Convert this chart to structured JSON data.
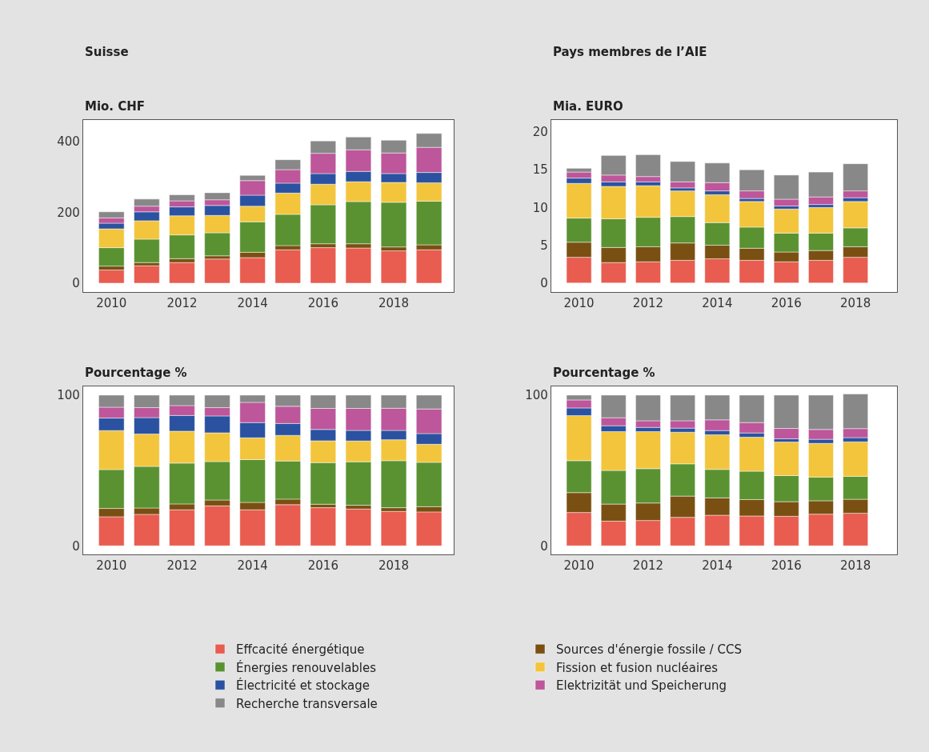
{
  "chart_data": [
    {
      "type": "bar",
      "stacked": true,
      "title": "Suisse",
      "ylabel": "Mio. CHF",
      "legend": "bottom",
      "x": [
        2010,
        2011,
        2012,
        2013,
        2014,
        2015,
        2016,
        2017,
        2018,
        2019
      ],
      "xlim": [
        2009.2,
        2019.7
      ],
      "xticks": [
        2010,
        2012,
        2014,
        2016,
        2018
      ],
      "ylim": [
        -25,
        460
      ],
      "yticks": [
        0,
        200,
        400
      ],
      "series": [
        {
          "name": "Effcacité énergétique",
          "color": "#e95c50",
          "values": [
            37,
            49,
            58,
            68,
            72,
            94,
            100,
            99,
            91,
            94
          ]
        },
        {
          "name": "Sources d'énergie fossile / CCS",
          "color": "#7a5012",
          "values": [
            11,
            9,
            11,
            9,
            15,
            12,
            11,
            12,
            11,
            14
          ]
        },
        {
          "name": "Énergies renouvelables",
          "color": "#5a9232",
          "values": [
            52,
            66,
            67,
            65,
            86,
            88,
            110,
            119,
            126,
            123
          ]
        },
        {
          "name": "Fission et fusion nucléaires",
          "color": "#f3c53c",
          "values": [
            53,
            52,
            54,
            49,
            44,
            60,
            58,
            56,
            56,
            52
          ]
        },
        {
          "name": "Électricité et stockage",
          "color": "#2a52a0",
          "values": [
            16,
            25,
            25,
            28,
            31,
            28,
            30,
            29,
            25,
            29
          ]
        },
        {
          "name": "Elektrizität und Speicherung",
          "color": "#bd569a",
          "values": [
            15,
            16,
            17,
            16,
            41,
            38,
            57,
            61,
            58,
            71
          ]
        },
        {
          "name": "Recherche transversale",
          "color": "#888888",
          "values": [
            17,
            20,
            17,
            20,
            15,
            28,
            35,
            36,
            36,
            39
          ]
        }
      ]
    },
    {
      "type": "bar",
      "stacked": true,
      "title": "Pays membres de l’AIE",
      "ylabel": "Mia. EURO",
      "x": [
        2010,
        2011,
        2012,
        2013,
        2014,
        2015,
        2016,
        2017,
        2018
      ],
      "xlim": [
        2009.2,
        2019.2
      ],
      "xticks": [
        2010,
        2012,
        2014,
        2016,
        2018
      ],
      "ylim": [
        -1.2,
        21.6
      ],
      "yticks": [
        0,
        5,
        10,
        15,
        20
      ],
      "series": [
        {
          "color": "#e95c50",
          "values": [
            3.4,
            2.7,
            2.8,
            3.0,
            3.2,
            3.0,
            2.8,
            3.0,
            3.4
          ]
        },
        {
          "color": "#7a5012",
          "values": [
            2.0,
            2.0,
            2.0,
            2.3,
            1.8,
            1.6,
            1.3,
            1.3,
            1.4
          ]
        },
        {
          "color": "#5a9232",
          "values": [
            3.2,
            3.8,
            3.9,
            3.5,
            3.0,
            2.8,
            2.5,
            2.3,
            2.5
          ]
        },
        {
          "color": "#f3c53c",
          "values": [
            4.6,
            4.3,
            4.2,
            3.4,
            3.7,
            3.4,
            3.2,
            3.4,
            3.5
          ]
        },
        {
          "color": "#2a52a0",
          "values": [
            0.7,
            0.6,
            0.5,
            0.4,
            0.5,
            0.4,
            0.4,
            0.4,
            0.5
          ]
        },
        {
          "color": "#bd569a",
          "values": [
            0.8,
            0.9,
            0.7,
            0.8,
            1.1,
            1.0,
            0.9,
            1.0,
            0.9
          ]
        },
        {
          "color": "#888888",
          "values": [
            0.5,
            2.6,
            2.9,
            2.7,
            2.6,
            2.8,
            3.2,
            3.3,
            3.6
          ]
        }
      ]
    },
    {
      "type": "bar",
      "stacked": true,
      "ylabel": "Pourcentage %",
      "x": [
        2010,
        2011,
        2012,
        2013,
        2014,
        2015,
        2016,
        2017,
        2018,
        2019
      ],
      "xlim": [
        2009.2,
        2019.7
      ],
      "xticks": [
        2010,
        2012,
        2014,
        2016,
        2018
      ],
      "ylim": [
        -5.7,
        105.8
      ],
      "yticks": [
        0,
        100
      ],
      "series": [
        {
          "color": "#e95c50",
          "values": [
            19.3,
            20.9,
            23.9,
            26.5,
            23.9,
            27.3,
            25.3,
            24.4,
            22.8,
            22.5
          ]
        },
        {
          "color": "#7a5012",
          "values": [
            5.5,
            4.2,
            3.9,
            3.9,
            4.9,
            3.7,
            2.3,
            2.5,
            2.5,
            3.5
          ]
        },
        {
          "color": "#5a9232",
          "values": [
            25.8,
            27.6,
            27.1,
            25.5,
            28.4,
            25.3,
            27.6,
            28.9,
            31.2,
            29.4
          ]
        },
        {
          "color": "#f3c53c",
          "values": [
            25.9,
            21.5,
            21.2,
            19.1,
            14.5,
            17.0,
            14.5,
            13.8,
            13.9,
            12.0
          ]
        },
        {
          "color": "#2a52a0",
          "values": [
            8.3,
            10.9,
            10.4,
            11.2,
            10.1,
            7.9,
            7.5,
            7.0,
            6.2,
            7.1
          ]
        },
        {
          "color": "#bd569a",
          "values": [
            7.2,
            6.6,
            6.6,
            5.5,
            13.4,
            11.4,
            14.0,
            14.6,
            14.7,
            16.3
          ]
        },
        {
          "color": "#888888",
          "values": [
            8.0,
            8.3,
            6.9,
            8.3,
            4.8,
            7.4,
            8.8,
            8.8,
            8.7,
            9.2
          ]
        }
      ]
    },
    {
      "type": "bar",
      "stacked": true,
      "ylabel": "Pourcentage %",
      "x": [
        2010,
        2011,
        2012,
        2013,
        2014,
        2015,
        2016,
        2017,
        2018
      ],
      "xlim": [
        2009.2,
        2019.2
      ],
      "xticks": [
        2010,
        2012,
        2014,
        2016,
        2018
      ],
      "ylim": [
        -5.7,
        105.8
      ],
      "yticks": [
        0,
        100
      ],
      "series": [
        {
          "color": "#e95c50",
          "values": [
            22.1,
            16.4,
            16.8,
            18.9,
            20.3,
            19.8,
            19.6,
            21.0,
            21.6
          ]
        },
        {
          "color": "#7a5012",
          "values": [
            13.2,
            11.3,
            11.6,
            14.1,
            11.5,
            10.9,
            9.7,
            8.9,
            9.3
          ]
        },
        {
          "color": "#5a9232",
          "values": [
            21.2,
            22.3,
            22.8,
            21.4,
            18.9,
            18.8,
            17.3,
            15.7,
            15.2
          ]
        },
        {
          "color": "#f3c53c",
          "values": [
            29.9,
            25.8,
            24.6,
            21.0,
            23.0,
            22.6,
            22.3,
            22.4,
            22.9
          ]
        },
        {
          "color": "#2a52a0",
          "values": [
            5.1,
            3.9,
            2.8,
            2.7,
            2.8,
            2.8,
            2.1,
            2.7,
            2.8
          ]
        },
        {
          "color": "#bd569a",
          "values": [
            5.3,
            5.3,
            4.4,
            4.9,
            7.1,
            6.9,
            6.9,
            6.5,
            6.0
          ]
        },
        {
          "color": "#888888",
          "values": [
            3.2,
            15.0,
            17.0,
            17.0,
            16.4,
            18.2,
            22.1,
            22.8,
            23.0
          ]
        }
      ]
    }
  ]
}
